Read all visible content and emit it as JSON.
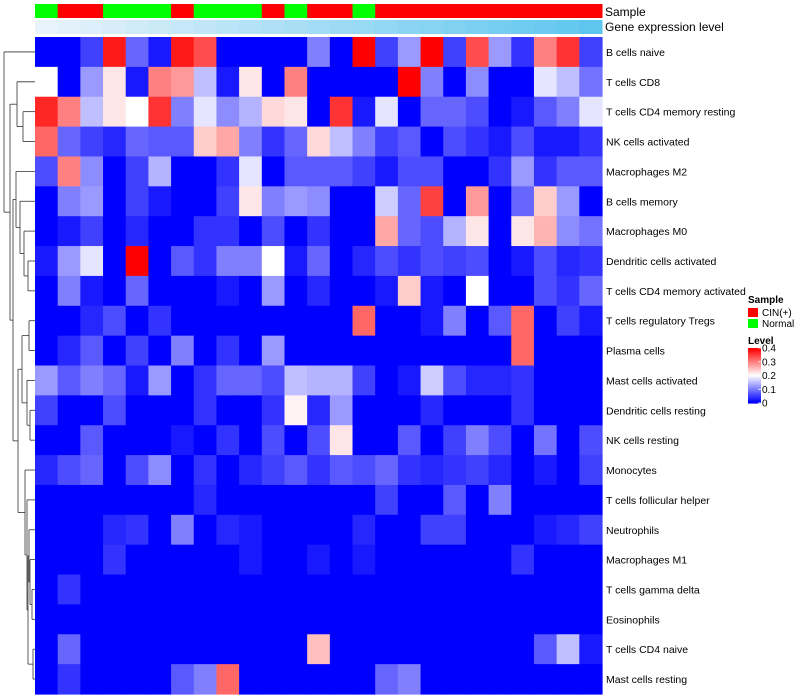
{
  "chart_data": {
    "type": "heatmap",
    "title": "",
    "annotation_tracks": [
      "Sample",
      "Gene expression level"
    ],
    "columns": 25,
    "sample_annotation": [
      "Normal",
      "CIN(+)",
      "CIN(+)",
      "Normal",
      "Normal",
      "Normal",
      "CIN(+)",
      "Normal",
      "Normal",
      "Normal",
      "CIN(+)",
      "Normal",
      "CIN(+)",
      "CIN(+)",
      "Normal",
      "CIN(+)",
      "CIN(+)",
      "CIN(+)",
      "CIN(+)",
      "CIN(+)",
      "CIN(+)",
      "CIN(+)",
      "CIN(+)",
      "CIN(+)",
      "CIN(+)"
    ],
    "gene_expression_track": {
      "from_color": "#e8f3fb",
      "to_color": "#5ec6ee"
    },
    "rows": [
      "B cells naive",
      "T cells CD8",
      "T cells CD4 memory resting",
      "NK cells activated",
      "Macrophages M2",
      "B cells memory",
      "Macrophages M0",
      "Dendritic cells activated",
      "T cells CD4 memory activated",
      "T cells regulatory  Tregs",
      "Plasma cells",
      "Mast cells activated",
      "Dendritic cells resting",
      "NK cells resting",
      "Monocytes",
      "T cells follicular helper",
      "Neutrophils",
      "Macrophages M1",
      "T cells gamma delta",
      "Eosinophils",
      "T cells CD4 naive",
      "Mast cells resting"
    ],
    "values": [
      [
        0.0,
        0.0,
        0.05,
        0.38,
        0.08,
        0.02,
        0.38,
        0.34,
        0.0,
        0.0,
        0.0,
        0.0,
        0.1,
        0.0,
        0.4,
        0.05,
        0.12,
        0.4,
        0.05,
        0.34,
        0.12,
        0.04,
        0.3,
        0.36,
        0.05
      ],
      [
        0.2,
        0.0,
        0.12,
        0.22,
        0.02,
        0.3,
        0.28,
        0.15,
        0.02,
        0.22,
        0.0,
        0.3,
        0.0,
        0.0,
        0.0,
        0.0,
        0.4,
        0.1,
        0.0,
        0.11,
        0.0,
        0.0,
        0.18,
        0.15,
        0.09
      ],
      [
        0.37,
        0.3,
        0.15,
        0.22,
        0.2,
        0.36,
        0.1,
        0.18,
        0.11,
        0.14,
        0.23,
        0.22,
        0.0,
        0.36,
        0.02,
        0.18,
        0.0,
        0.08,
        0.08,
        0.06,
        0.0,
        0.02,
        0.07,
        0.1,
        0.18
      ],
      [
        0.32,
        0.08,
        0.05,
        0.03,
        0.08,
        0.07,
        0.07,
        0.24,
        0.27,
        0.1,
        0.04,
        0.08,
        0.23,
        0.15,
        0.1,
        0.05,
        0.07,
        0.0,
        0.06,
        0.04,
        0.02,
        0.06,
        0.02,
        0.02,
        0.04
      ],
      [
        0.06,
        0.3,
        0.11,
        0.0,
        0.05,
        0.14,
        0.0,
        0.0,
        0.04,
        0.18,
        0.0,
        0.07,
        0.07,
        0.07,
        0.05,
        0.02,
        0.06,
        0.06,
        0.0,
        0.0,
        0.04,
        0.12,
        0.04,
        0.07,
        0.07
      ],
      [
        0.0,
        0.1,
        0.12,
        0.0,
        0.05,
        0.02,
        0.0,
        0.0,
        0.05,
        0.22,
        0.1,
        0.12,
        0.11,
        0.0,
        0.0,
        0.16,
        0.08,
        0.35,
        0.0,
        0.28,
        0.0,
        0.08,
        0.24,
        0.12,
        0.0
      ],
      [
        0.0,
        0.02,
        0.05,
        0.0,
        0.03,
        0.0,
        0.0,
        0.04,
        0.04,
        0.0,
        0.06,
        0.0,
        0.04,
        0.0,
        0.0,
        0.27,
        0.08,
        0.06,
        0.14,
        0.22,
        0.0,
        0.22,
        0.26,
        0.11,
        0.09
      ],
      [
        0.02,
        0.12,
        0.18,
        0.0,
        0.4,
        0.0,
        0.07,
        0.04,
        0.1,
        0.1,
        0.2,
        0.02,
        0.08,
        0.0,
        0.03,
        0.06,
        0.04,
        0.06,
        0.05,
        0.06,
        0.0,
        0.02,
        0.06,
        0.03,
        0.04
      ],
      [
        0.0,
        0.1,
        0.02,
        0.0,
        0.08,
        0.0,
        0.0,
        0.0,
        0.02,
        0.0,
        0.12,
        0.0,
        0.03,
        0.0,
        0.0,
        0.02,
        0.24,
        0.02,
        0.0,
        0.2,
        0.0,
        0.0,
        0.06,
        0.04,
        0.08
      ],
      [
        0.0,
        0.0,
        0.03,
        0.06,
        0.0,
        0.04,
        0.0,
        0.0,
        0.0,
        0.0,
        0.0,
        0.0,
        0.0,
        0.0,
        0.32,
        0.0,
        0.0,
        0.02,
        0.1,
        0.0,
        0.07,
        0.32,
        0.0,
        0.05,
        0.02
      ],
      [
        0.0,
        0.03,
        0.07,
        0.0,
        0.05,
        0.0,
        0.1,
        0.0,
        0.04,
        0.0,
        0.12,
        0.0,
        0.0,
        0.0,
        0.0,
        0.0,
        0.0,
        0.0,
        0.0,
        0.0,
        0.0,
        0.32,
        0.0,
        0.0,
        0.0
      ],
      [
        0.12,
        0.07,
        0.1,
        0.08,
        0.02,
        0.12,
        0.0,
        0.04,
        0.08,
        0.08,
        0.06,
        0.15,
        0.14,
        0.14,
        0.05,
        0.0,
        0.02,
        0.16,
        0.06,
        0.03,
        0.03,
        0.04,
        0.0,
        0.0,
        0.0
      ],
      [
        0.05,
        0.0,
        0.0,
        0.06,
        0.0,
        0.0,
        0.0,
        0.04,
        0.0,
        0.0,
        0.04,
        0.21,
        0.03,
        0.12,
        0.0,
        0.0,
        0.0,
        0.03,
        0.0,
        0.0,
        0.0,
        0.04,
        0.0,
        0.0,
        0.0
      ],
      [
        0.0,
        0.0,
        0.07,
        0.0,
        0.0,
        0.0,
        0.02,
        0.0,
        0.04,
        0.0,
        0.06,
        0.0,
        0.06,
        0.22,
        0.0,
        0.0,
        0.07,
        0.0,
        0.05,
        0.1,
        0.06,
        0.0,
        0.09,
        0.0,
        0.06
      ],
      [
        0.03,
        0.06,
        0.08,
        0.0,
        0.06,
        0.11,
        0.0,
        0.04,
        0.0,
        0.03,
        0.05,
        0.07,
        0.04,
        0.07,
        0.06,
        0.08,
        0.04,
        0.03,
        0.04,
        0.05,
        0.03,
        0.0,
        0.02,
        0.0,
        0.05
      ],
      [
        0.0,
        0.0,
        0.0,
        0.0,
        0.0,
        0.0,
        0.0,
        0.03,
        0.0,
        0.0,
        0.0,
        0.0,
        0.0,
        0.0,
        0.0,
        0.05,
        0.0,
        0.0,
        0.07,
        0.0,
        0.1,
        0.0,
        0.0,
        0.0,
        0.0
      ],
      [
        0.0,
        0.0,
        0.0,
        0.03,
        0.04,
        0.0,
        0.1,
        0.0,
        0.03,
        0.02,
        0.0,
        0.0,
        0.0,
        0.0,
        0.03,
        0.0,
        0.0,
        0.05,
        0.05,
        0.0,
        0.0,
        0.0,
        0.02,
        0.03,
        0.05
      ],
      [
        0.0,
        0.0,
        0.0,
        0.04,
        0.0,
        0.0,
        0.0,
        0.0,
        0.0,
        0.02,
        0.0,
        0.0,
        0.02,
        0.0,
        0.02,
        0.0,
        0.0,
        0.0,
        0.0,
        0.0,
        0.0,
        0.04,
        0.0,
        0.0,
        0.0
      ],
      [
        0.0,
        0.04,
        0.0,
        0.0,
        0.0,
        0.0,
        0.0,
        0.0,
        0.0,
        0.0,
        0.0,
        0.0,
        0.0,
        0.0,
        0.0,
        0.0,
        0.0,
        0.0,
        0.0,
        0.0,
        0.0,
        0.0,
        0.0,
        0.0,
        0.0
      ],
      [
        0.0,
        0.0,
        0.0,
        0.0,
        0.0,
        0.0,
        0.0,
        0.0,
        0.0,
        0.0,
        0.0,
        0.0,
        0.0,
        0.0,
        0.0,
        0.0,
        0.0,
        0.0,
        0.0,
        0.0,
        0.0,
        0.0,
        0.0,
        0.0,
        0.0
      ],
      [
        0.0,
        0.08,
        0.0,
        0.0,
        0.0,
        0.0,
        0.0,
        0.0,
        0.0,
        0.0,
        0.0,
        0.0,
        0.25,
        0.0,
        0.0,
        0.0,
        0.0,
        0.0,
        0.0,
        0.0,
        0.0,
        0.0,
        0.07,
        0.15,
        0.02
      ],
      [
        0.0,
        0.04,
        0.0,
        0.0,
        0.0,
        0.0,
        0.07,
        0.1,
        0.32,
        0.0,
        0.0,
        0.0,
        0.0,
        0.0,
        0.0,
        0.08,
        0.1,
        0.0,
        0.0,
        0.0,
        0.0,
        0.0,
        0.0,
        0.0,
        0.0
      ]
    ],
    "color_scale": {
      "min": 0,
      "mid": 0.2,
      "max": 0.4,
      "low": "#0000ff",
      "mid_color": "#ffffff",
      "high": "#ff0000"
    },
    "legends": {
      "sample": {
        "title": "Sample",
        "items": [
          {
            "label": "CIN(+)",
            "color": "#ff0000"
          },
          {
            "label": "Normal",
            "color": "#00ff00"
          }
        ]
      },
      "level": {
        "title": "Level",
        "ticks": [
          {
            "value": 0.4,
            "label": "0.4"
          },
          {
            "value": 0.3,
            "label": "0.3"
          },
          {
            "value": 0.2,
            "label": "0.2"
          },
          {
            "value": 0.1,
            "label": "0.1"
          },
          {
            "value": 0,
            "label": "0"
          }
        ]
      }
    }
  }
}
